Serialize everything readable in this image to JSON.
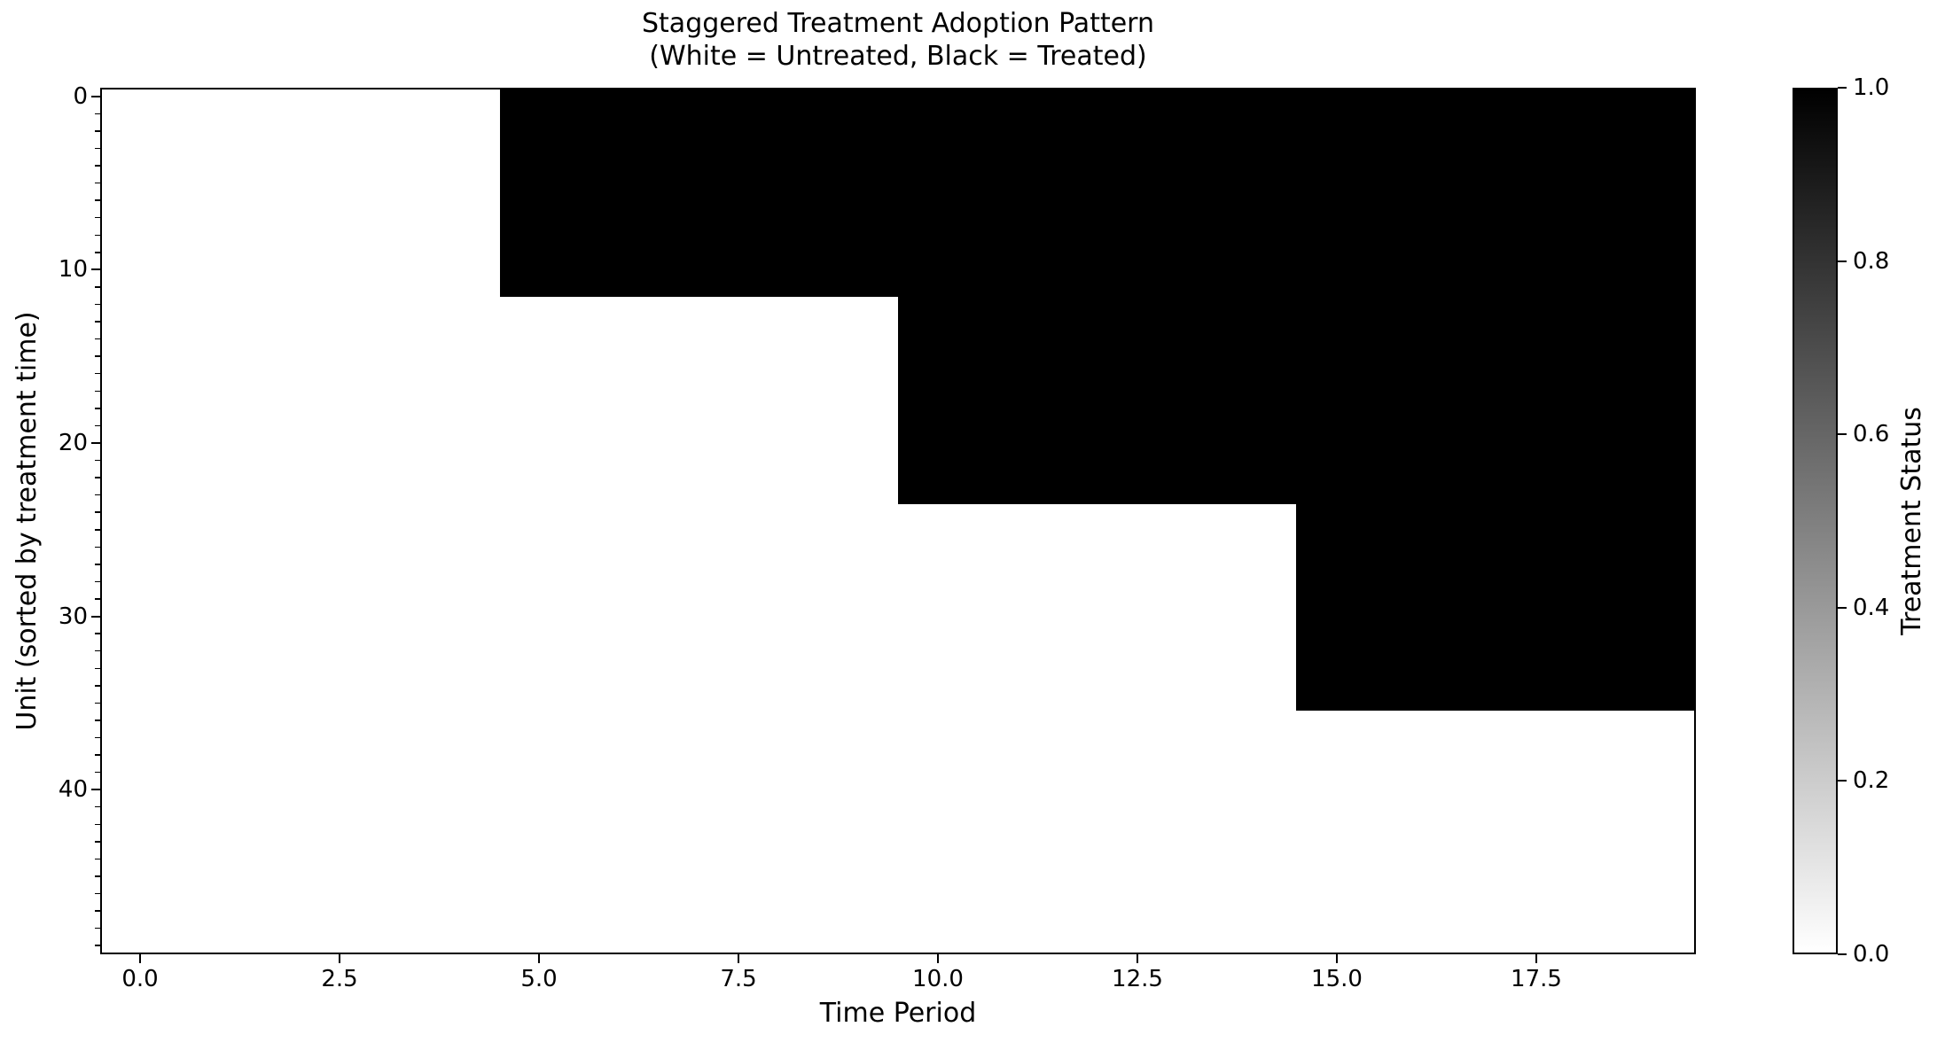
{
  "figure": {
    "title_line1": "Staggered Treatment Adoption Pattern",
    "title_line2": "(White = Untreated, Black = Treated)",
    "xlabel": "Time Period",
    "ylabel": "Unit (sorted by treatment time)",
    "colorbar_label": "Treatment Status"
  },
  "chart_data": {
    "type": "heatmap",
    "title": "Staggered Treatment Adoption Pattern (White = Untreated, Black = Treated)",
    "xlabel": "Time Period",
    "ylabel": "Unit (sorted by treatment time)",
    "n_time_periods": 20,
    "n_units": 50,
    "x_range": [
      -0.5,
      19.5
    ],
    "y_range_top_to_bottom": [
      -0.5,
      49.5
    ],
    "grid": false,
    "cell_values": {
      "untreated": 0,
      "treated": 1
    },
    "colors": {
      "untreated": "#ffffff",
      "treated": "#000000",
      "frame": "#000000"
    },
    "treatment_groups": [
      {
        "units": "0-11",
        "unit_start": 0,
        "unit_end": 11,
        "adoption_period": 5,
        "status": "treated from period 5"
      },
      {
        "units": "12-23",
        "unit_start": 12,
        "unit_end": 23,
        "adoption_period": 10,
        "status": "treated from period 10"
      },
      {
        "units": "24-35",
        "unit_start": 24,
        "unit_end": 35,
        "adoption_period": 15,
        "status": "treated from period 15"
      },
      {
        "units": "36-49",
        "unit_start": 36,
        "unit_end": 49,
        "adoption_period": null,
        "status": "never treated"
      }
    ],
    "x_ticks": [
      {
        "value": 0,
        "label": "0.0"
      },
      {
        "value": 2.5,
        "label": "2.5"
      },
      {
        "value": 5,
        "label": "5.0"
      },
      {
        "value": 7.5,
        "label": "7.5"
      },
      {
        "value": 10,
        "label": "10.0"
      },
      {
        "value": 12.5,
        "label": "12.5"
      },
      {
        "value": 15,
        "label": "15.0"
      },
      {
        "value": 17.5,
        "label": "17.5"
      }
    ],
    "y_ticks": [
      {
        "value": 0,
        "label": "0"
      },
      {
        "value": 10,
        "label": "10"
      },
      {
        "value": 20,
        "label": "20"
      },
      {
        "value": 30,
        "label": "30"
      },
      {
        "value": 40,
        "label": "40"
      }
    ],
    "y_minor_tick_every": 1,
    "colorbar": {
      "label": "Treatment Status",
      "value_top": 1.0,
      "value_bottom": 0.0,
      "gradient_top_color": "#000000",
      "gradient_bottom_color": "#ffffff",
      "ticks": [
        {
          "value": 1.0,
          "label": "1.0"
        },
        {
          "value": 0.8,
          "label": "0.8"
        },
        {
          "value": 0.6,
          "label": "0.6"
        },
        {
          "value": 0.4,
          "label": "0.4"
        },
        {
          "value": 0.2,
          "label": "0.2"
        },
        {
          "value": 0.0,
          "label": "0.0"
        }
      ]
    }
  }
}
